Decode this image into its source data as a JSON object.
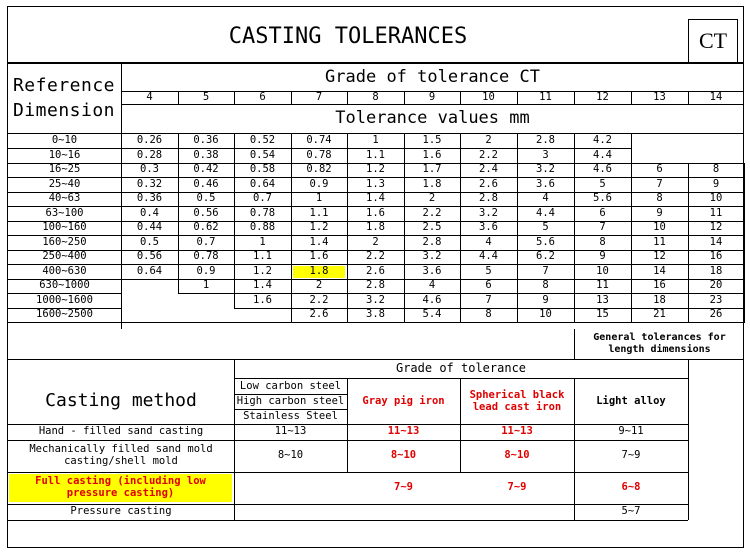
{
  "title": "CASTING TOLERANCES",
  "badge": "CT",
  "reference_dimension": "Reference Dimension",
  "grade_header": "Grade of tolerance CT",
  "grades": [
    "4",
    "5",
    "6",
    "7",
    "8",
    "9",
    "10",
    "11",
    "12",
    "13",
    "14"
  ],
  "tolerance_values_header": "Tolerance values mm",
  "dimension_rows": [
    {
      "range": "0~10",
      "values": [
        "0.26",
        "0.36",
        "0.52",
        "0.74",
        "1",
        "1.5",
        "2",
        "2.8",
        "4.2",
        "",
        ""
      ]
    },
    {
      "range": "10~16",
      "values": [
        "0.28",
        "0.38",
        "0.54",
        "0.78",
        "1.1",
        "1.6",
        "2.2",
        "3",
        "4.4",
        "",
        ""
      ]
    },
    {
      "range": "16~25",
      "values": [
        "0.3",
        "0.42",
        "0.58",
        "0.82",
        "1.2",
        "1.7",
        "2.4",
        "3.2",
        "4.6",
        "6",
        "8"
      ]
    },
    {
      "range": "25~40",
      "values": [
        "0.32",
        "0.46",
        "0.64",
        "0.9",
        "1.3",
        "1.8",
        "2.6",
        "3.6",
        "5",
        "7",
        "9"
      ]
    },
    {
      "range": "40~63",
      "values": [
        "0.36",
        "0.5",
        "0.7",
        "1",
        "1.4",
        "2",
        "2.8",
        "4",
        "5.6",
        "8",
        "10"
      ]
    },
    {
      "range": "63~100",
      "values": [
        "0.4",
        "0.56",
        "0.78",
        "1.1",
        "1.6",
        "2.2",
        "3.2",
        "4.4",
        "6",
        "9",
        "11"
      ]
    },
    {
      "range": "100~160",
      "values": [
        "0.44",
        "0.62",
        "0.88",
        "1.2",
        "1.8",
        "2.5",
        "3.6",
        "5",
        "7",
        "10",
        "12"
      ]
    },
    {
      "range": "160~250",
      "values": [
        "0.5",
        "0.7",
        "1",
        "1.4",
        "2",
        "2.8",
        "4",
        "5.6",
        "8",
        "11",
        "14"
      ]
    },
    {
      "range": "250~400",
      "values": [
        "0.56",
        "0.78",
        "1.1",
        "1.6",
        "2.2",
        "3.2",
        "4.4",
        "6.2",
        "9",
        "12",
        "16"
      ]
    },
    {
      "range": "400~630",
      "values": [
        "0.64",
        "0.9",
        "1.2",
        "1.8",
        "2.6",
        "3.6",
        "5",
        "7",
        "10",
        "14",
        "18"
      ]
    },
    {
      "range": "630~1000",
      "values": [
        "",
        "1",
        "1.4",
        "2",
        "2.8",
        "4",
        "6",
        "8",
        "11",
        "16",
        "20"
      ]
    },
    {
      "range": "1000~1600",
      "values": [
        "",
        "",
        "1.6",
        "2.2",
        "3.2",
        "4.6",
        "7",
        "9",
        "13",
        "18",
        "23"
      ]
    },
    {
      "range": "1600~2500",
      "values": [
        "",
        "",
        "",
        "2.6",
        "3.8",
        "5.4",
        "8",
        "10",
        "15",
        "21",
        "26"
      ]
    }
  ],
  "general_tolerances_note": "General tolerances for length dimensions",
  "casting_method_header": "Casting method",
  "grade_of_tolerance_header": "Grade of tolerance",
  "materials": {
    "steel": [
      "Low carbon steel",
      "High carbon steel",
      "Stainless Steel"
    ],
    "gray_pig_iron": "Gray pig iron",
    "spherical": [
      "Spherical black",
      "lead cast iron"
    ],
    "light_alloy": "Light alloy"
  },
  "methods": [
    {
      "name": [
        "Hand - filled sand casting"
      ],
      "steel": "11~13",
      "gray": "11~13",
      "spherical": "11~13",
      "light": "9~11"
    },
    {
      "name": [
        "Mechanically filled sand mold",
        "casting/shell mold"
      ],
      "steel": "8~10",
      "gray": "8~10",
      "spherical": "8~10",
      "light": "7~9"
    },
    {
      "name": [
        "Full casting (including low",
        "pressure casting)"
      ],
      "steel": "",
      "gray": "7~9",
      "spherical": "7~9",
      "light": "6~8"
    },
    {
      "name": [
        "Pressure casting"
      ],
      "steel": "",
      "gray": "",
      "spherical": "",
      "light": "5~7"
    }
  ],
  "highlight": {
    "row_range": "400~630",
    "grade": "7",
    "value": "1.8"
  },
  "colors": {
    "highlight": "#ffff00",
    "red_text": "#e00000"
  }
}
